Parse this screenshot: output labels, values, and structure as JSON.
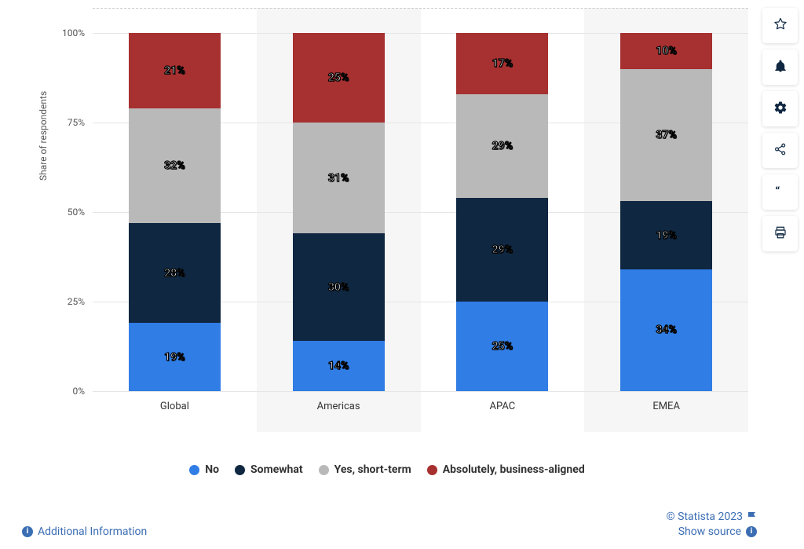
{
  "chart": {
    "type": "stacked-bar",
    "y_axis": {
      "title": "Share of respondents",
      "ticks": [
        0,
        25,
        50,
        75,
        100
      ],
      "suffix": "%",
      "max": 100,
      "grid_color": "#e6e6e6",
      "top_line_color": "#c9c9c9",
      "label_color": "#555555",
      "label_fontsize": 12
    },
    "categories": [
      "Global",
      "Americas",
      "APAC",
      "EMEA"
    ],
    "alt_category_bg": "#f6f6f6",
    "bar_width_pct": 56,
    "series": [
      {
        "key": "no",
        "label": "No",
        "color": "#307de5"
      },
      {
        "key": "somewhat",
        "label": "Somewhat",
        "color": "#0f2741"
      },
      {
        "key": "short",
        "label": "Yes, short-term",
        "color": "#b9b9b9"
      },
      {
        "key": "aligned",
        "label": "Absolutely, business-aligned",
        "color": "#a73030"
      }
    ],
    "data": {
      "Global": {
        "no": 19,
        "somewhat": 28,
        "short": 32,
        "aligned": 21
      },
      "Americas": {
        "no": 14,
        "somewhat": 30,
        "short": 31,
        "aligned": 25
      },
      "APAC": {
        "no": 25,
        "somewhat": 29,
        "short": 29,
        "aligned": 17
      },
      "EMEA": {
        "no": 34,
        "somewhat": 19,
        "short": 37,
        "aligned": 10
      }
    },
    "value_suffix": "%",
    "value_label_fontsize": 14,
    "value_label_color": "#ffffff",
    "value_label_stroke": "#000000",
    "legend_fontsize": 14,
    "legend_fontweight": 700,
    "x_label_fontsize": 13
  },
  "footer": {
    "additional_label": "Additional Information",
    "credit_label": "© Statista 2023",
    "source_label": "Show source",
    "link_color": "#3b6db3"
  },
  "toolbar": {
    "items": [
      {
        "name": "star-icon",
        "title": "Favorite"
      },
      {
        "name": "bell-icon",
        "title": "Notifications"
      },
      {
        "name": "gear-icon",
        "title": "Settings"
      },
      {
        "name": "share-icon",
        "title": "Share"
      },
      {
        "name": "quote-icon",
        "title": "Citation"
      },
      {
        "name": "print-icon",
        "title": "Print"
      }
    ]
  }
}
